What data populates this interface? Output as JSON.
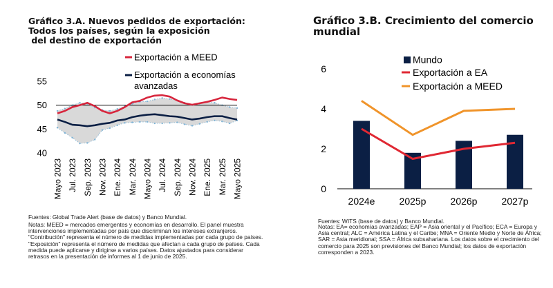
{
  "colors": {
    "meed": "#d7263d",
    "adv": "#0b1f44",
    "mundo": "#0b1f44",
    "ea": "#e02833",
    "meedB": "#f0942a",
    "band": "#d9d9d9",
    "dot": "#7fb3d5"
  },
  "chartA": {
    "title": "Gráfico 3.A. Nuevos pedidos de exportación:\nTodos los países, según la exposición\n del destino de exportación",
    "source": "Fuentes: Global Trade Alert (base de datos) y Banco Mundial.",
    "notes": "Notas: MEED = mercados emergentes y economías en desarrollo. El panel muestra intervenciones implementadas por país que discriminan los intereses extranjeros. \"Contribución\" representa el número de medidas implementadas por cada grupo de países. \"Exposición\" representa el número de medidas que afectan a cada grupo de países. Cada medida puede aplicarse y dirigirse a varios países. Datos ajustados para considerar retrasos en la presentación de informes al 1 de junio de 2025."
  },
  "chartB": {
    "title": "Gráfico 3.B. Crecimiento del comercio mundial",
    "source": "Fuentes: WITS (base de datos) y Banco Mundial.",
    "notes": "Notas: EA= economías avanzadas; EAP = Asia oriental y el Pacífico; ECA = Europa y Asia central; ALC = América Latina y el Caribe; MNA = Oriente Medio y Norte de África; SAR = Asia meridional; SSA = África subsahariana. Los datos sobre el crecimiento del comercio para 2025 son previsiones del Banco Mundial; los datos de exportación corresponden a 2023."
  },
  "chart_data": [
    {
      "type": "line",
      "title": "Gráfico 3.A. Nuevos pedidos de exportación: Todos los países, según la exposición del destino de exportación",
      "xlabel": "",
      "ylabel": "",
      "ylim": [
        40,
        55
      ],
      "yticks": [
        40,
        45,
        50,
        55
      ],
      "reference_line": 50,
      "x": [
        "Mayo 2023",
        "Jun. 2023",
        "Jul. 2023",
        "Ago. 2023",
        "Sep. 2023",
        "Oct. 2023",
        "Nov. 2023",
        "Dic. 2023",
        "Ene. 2024",
        "Feb. 2024",
        "Mar. 2024",
        "Abr. 2024",
        "Mayo 2024",
        "Jun. 2024",
        "Jul. 2024",
        "Ago. 2024",
        "Sep. 2024",
        "Oct. 2024",
        "Nov. 2024",
        "Dic. 2024",
        "Ene. 2025",
        "Feb. 2025",
        "Mar. 2025",
        "Abr. 2025",
        "Mayo 2025"
      ],
      "xtick_labels": [
        "Mayo 2023",
        "Jul. 2023",
        "Sep. 2023",
        "Nov. 2023",
        "Ene. 2024",
        "Mar. 2024",
        "Mayo 2024",
        "Jul. 2024",
        "Sep. 2024",
        "Nov. 2024",
        "Ene. 2025",
        "Mar. 2025",
        "Mayo 2025"
      ],
      "legend": [
        "Exportación a MEED",
        "Exportación a economías avanzadas"
      ],
      "series": [
        {
          "name": "Exportación a MEED",
          "values": [
            48.3,
            48.8,
            49.6,
            50.0,
            50.5,
            49.8,
            48.8,
            48.3,
            48.8,
            49.6,
            50.6,
            50.9,
            51.6,
            52.0,
            52.1,
            51.8,
            51.0,
            50.4,
            50.1,
            50.4,
            50.7,
            51.1,
            51.6,
            51.3,
            51.1
          ]
        },
        {
          "name": "Exportación a economías avanzadas",
          "values": [
            47.0,
            46.5,
            45.9,
            45.8,
            45.6,
            45.8,
            46.1,
            46.3,
            46.8,
            47.0,
            47.5,
            47.8,
            48.0,
            48.1,
            47.9,
            47.7,
            47.6,
            47.3,
            47.0,
            47.2,
            47.5,
            47.7,
            47.7,
            47.3,
            47.0
          ]
        },
        {
          "name": "Rango superior",
          "values": [
            48.8,
            49.3,
            50.0,
            50.5,
            50.3,
            49.5,
            49.0,
            48.8,
            49.2,
            49.8,
            50.3,
            50.7,
            50.8,
            51.2,
            51.5,
            51.3,
            51.0,
            50.5,
            50.0,
            50.3,
            50.7,
            50.5,
            50.0,
            49.6,
            49.4
          ]
        },
        {
          "name": "Rango inferior",
          "values": [
            45.3,
            44.2,
            43.2,
            42.0,
            42.1,
            42.8,
            44.8,
            45.2,
            45.8,
            46.3,
            46.4,
            46.5,
            46.5,
            46.2,
            46.2,
            46.3,
            46.4,
            46.0,
            45.7,
            46.1,
            46.5,
            46.8,
            46.6,
            46.2,
            46.8
          ]
        }
      ]
    },
    {
      "type": "bar",
      "title": "Gráfico 3.B. Crecimiento del comercio mundial",
      "xlabel": "",
      "ylabel": "",
      "ylim": [
        0,
        6
      ],
      "yticks": [
        0,
        2,
        4,
        6
      ],
      "categories": [
        "2024e",
        "2025p",
        "2026p",
        "2027p"
      ],
      "legend": [
        "Mundo",
        "Exportación a EA",
        "Exportación a MEED"
      ],
      "series": [
        {
          "name": "Mundo",
          "type": "bar",
          "values": [
            3.4,
            1.8,
            2.4,
            2.7
          ]
        },
        {
          "name": "Exportación a EA",
          "type": "line",
          "values": [
            3.0,
            1.5,
            2.0,
            2.3
          ]
        },
        {
          "name": "Exportación a MEED",
          "type": "line",
          "values": [
            4.4,
            2.7,
            3.9,
            4.0
          ]
        }
      ]
    }
  ]
}
